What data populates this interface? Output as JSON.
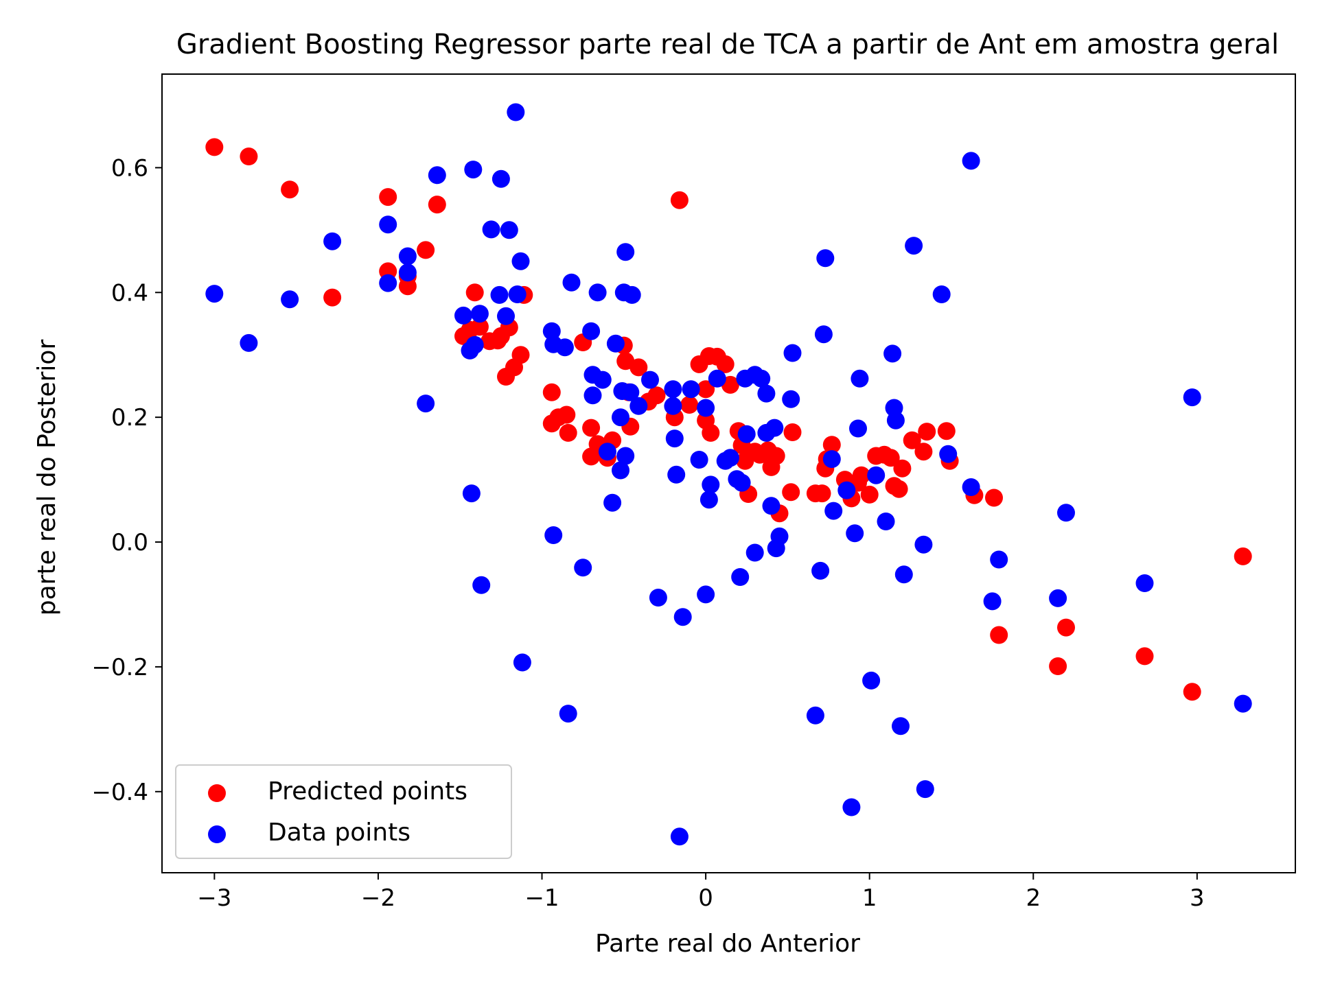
{
  "chart_data": {
    "type": "scatter",
    "title": "Gradient Boosting Regressor parte real de TCA a partir de Ant em amostra  geral",
    "xlabel": "Parte real do Anterior",
    "ylabel": "parte real do Posterior",
    "xlim": [
      -3.32,
      3.6
    ],
    "ylim": [
      -0.53,
      0.75
    ],
    "xticks": [
      -3,
      -2,
      -1,
      0,
      1,
      2,
      3
    ],
    "yticks": [
      -0.4,
      -0.2,
      0.0,
      0.2,
      0.4,
      0.6
    ],
    "xtick_labels": [
      "−3",
      "−2",
      "−1",
      "0",
      "1",
      "2",
      "3"
    ],
    "ytick_labels": [
      "−0.4",
      "−0.2",
      "0.0",
      "0.2",
      "0.4",
      "0.6"
    ],
    "grid": false,
    "legend_position": "lower-left",
    "series": [
      {
        "name": "Predicted points",
        "color": "#ff0000",
        "points": [
          [
            -3.0,
            0.633
          ],
          [
            -2.79,
            0.618
          ],
          [
            -2.54,
            0.565
          ],
          [
            -2.28,
            0.392
          ],
          [
            -1.94,
            0.553
          ],
          [
            -1.94,
            0.434
          ],
          [
            -1.82,
            0.41
          ],
          [
            -1.82,
            0.426
          ],
          [
            -1.71,
            0.468
          ],
          [
            -1.64,
            0.541
          ],
          [
            -1.48,
            0.33
          ],
          [
            -1.44,
            0.34
          ],
          [
            -1.41,
            0.4
          ],
          [
            -1.38,
            0.345
          ],
          [
            -1.32,
            0.322
          ],
          [
            -1.27,
            0.323
          ],
          [
            -1.25,
            0.33
          ],
          [
            -1.22,
            0.265
          ],
          [
            -1.2,
            0.344
          ],
          [
            -1.17,
            0.28
          ],
          [
            -1.13,
            0.3
          ],
          [
            -1.11,
            0.396
          ],
          [
            -0.94,
            0.24
          ],
          [
            -0.94,
            0.19
          ],
          [
            -0.9,
            0.2
          ],
          [
            -0.85,
            0.204
          ],
          [
            -0.84,
            0.175
          ],
          [
            -0.75,
            0.32
          ],
          [
            -0.7,
            0.183
          ],
          [
            -0.7,
            0.137
          ],
          [
            -0.66,
            0.157
          ],
          [
            -0.6,
            0.135
          ],
          [
            -0.57,
            0.163
          ],
          [
            -0.5,
            0.315
          ],
          [
            -0.49,
            0.29
          ],
          [
            -0.47,
            0.24
          ],
          [
            -0.46,
            0.185
          ],
          [
            -0.41,
            0.28
          ],
          [
            -0.35,
            0.225
          ],
          [
            -0.3,
            0.235
          ],
          [
            -0.19,
            0.2
          ],
          [
            -0.16,
            0.548
          ],
          [
            -0.1,
            0.22
          ],
          [
            -0.04,
            0.285
          ],
          [
            0.0,
            0.245
          ],
          [
            0.0,
            0.195
          ],
          [
            0.02,
            0.298
          ],
          [
            0.03,
            0.175
          ],
          [
            0.07,
            0.297
          ],
          [
            0.12,
            0.285
          ],
          [
            0.15,
            0.252
          ],
          [
            0.2,
            0.178
          ],
          [
            0.22,
            0.155
          ],
          [
            0.24,
            0.13
          ],
          [
            0.26,
            0.077
          ],
          [
            0.3,
            0.145
          ],
          [
            0.33,
            0.14
          ],
          [
            0.38,
            0.147
          ],
          [
            0.4,
            0.12
          ],
          [
            0.43,
            0.138
          ],
          [
            0.45,
            0.046
          ],
          [
            0.52,
            0.08
          ],
          [
            0.53,
            0.176
          ],
          [
            0.67,
            0.078
          ],
          [
            0.71,
            0.078
          ],
          [
            0.73,
            0.118
          ],
          [
            0.74,
            0.133
          ],
          [
            0.77,
            0.156
          ],
          [
            0.85,
            0.1
          ],
          [
            0.89,
            0.07
          ],
          [
            0.93,
            0.095
          ],
          [
            0.95,
            0.107
          ],
          [
            1.0,
            0.076
          ],
          [
            1.04,
            0.138
          ],
          [
            1.09,
            0.14
          ],
          [
            1.13,
            0.135
          ],
          [
            1.15,
            0.09
          ],
          [
            1.18,
            0.085
          ],
          [
            1.2,
            0.118
          ],
          [
            1.26,
            0.163
          ],
          [
            1.33,
            0.145
          ],
          [
            1.35,
            0.177
          ],
          [
            1.47,
            0.178
          ],
          [
            1.49,
            0.13
          ],
          [
            1.64,
            0.075
          ],
          [
            1.76,
            0.071
          ],
          [
            1.79,
            -0.149
          ],
          [
            2.15,
            -0.199
          ],
          [
            2.2,
            -0.137
          ],
          [
            2.68,
            -0.183
          ],
          [
            2.97,
            -0.24
          ],
          [
            3.28,
            -0.023
          ]
        ]
      },
      {
        "name": "Data points",
        "color": "#0000ff",
        "points": [
          [
            -3.0,
            0.398
          ],
          [
            -2.79,
            0.319
          ],
          [
            -2.54,
            0.389
          ],
          [
            -2.28,
            0.482
          ],
          [
            -1.94,
            0.509
          ],
          [
            -1.94,
            0.415
          ],
          [
            -1.82,
            0.458
          ],
          [
            -1.82,
            0.432
          ],
          [
            -1.71,
            0.222
          ],
          [
            -1.64,
            0.588
          ],
          [
            -1.48,
            0.363
          ],
          [
            -1.44,
            0.307
          ],
          [
            -1.43,
            0.078
          ],
          [
            -1.42,
            0.597
          ],
          [
            -1.41,
            0.316
          ],
          [
            -1.38,
            0.366
          ],
          [
            -1.37,
            -0.069
          ],
          [
            -1.31,
            0.501
          ],
          [
            -1.26,
            0.396
          ],
          [
            -1.25,
            0.582
          ],
          [
            -1.22,
            0.362
          ],
          [
            -1.2,
            0.5
          ],
          [
            -1.16,
            0.689
          ],
          [
            -1.15,
            0.397
          ],
          [
            -1.13,
            0.45
          ],
          [
            -1.12,
            -0.193
          ],
          [
            -0.94,
            0.338
          ],
          [
            -0.93,
            0.317
          ],
          [
            -0.93,
            0.011
          ],
          [
            -0.86,
            0.312
          ],
          [
            -0.84,
            -0.275
          ],
          [
            -0.82,
            0.416
          ],
          [
            -0.75,
            -0.041
          ],
          [
            -0.7,
            0.338
          ],
          [
            -0.69,
            0.268
          ],
          [
            -0.69,
            0.235
          ],
          [
            -0.66,
            0.4
          ],
          [
            -0.63,
            0.26
          ],
          [
            -0.6,
            0.145
          ],
          [
            -0.57,
            0.063
          ],
          [
            -0.55,
            0.318
          ],
          [
            -0.52,
            0.2
          ],
          [
            -0.52,
            0.115
          ],
          [
            -0.51,
            0.242
          ],
          [
            -0.5,
            0.4
          ],
          [
            -0.49,
            0.138
          ],
          [
            -0.49,
            0.465
          ],
          [
            -0.46,
            0.24
          ],
          [
            -0.45,
            0.396
          ],
          [
            -0.41,
            0.218
          ],
          [
            -0.34,
            0.26
          ],
          [
            -0.29,
            -0.089
          ],
          [
            -0.2,
            0.245
          ],
          [
            -0.2,
            0.218
          ],
          [
            -0.19,
            0.166
          ],
          [
            -0.18,
            0.108
          ],
          [
            -0.16,
            -0.472
          ],
          [
            -0.14,
            -0.12
          ],
          [
            -0.09,
            0.245
          ],
          [
            -0.04,
            0.132
          ],
          [
            0.0,
            0.215
          ],
          [
            0.0,
            -0.084
          ],
          [
            0.02,
            0.068
          ],
          [
            0.03,
            0.092
          ],
          [
            0.07,
            0.262
          ],
          [
            0.12,
            0.13
          ],
          [
            0.15,
            0.135
          ],
          [
            0.19,
            0.101
          ],
          [
            0.21,
            -0.056
          ],
          [
            0.22,
            0.095
          ],
          [
            0.24,
            0.262
          ],
          [
            0.25,
            0.173
          ],
          [
            0.3,
            0.268
          ],
          [
            0.3,
            -0.017
          ],
          [
            0.34,
            0.262
          ],
          [
            0.37,
            0.238
          ],
          [
            0.37,
            0.175
          ],
          [
            0.4,
            0.058
          ],
          [
            0.42,
            0.183
          ],
          [
            0.43,
            -0.01
          ],
          [
            0.45,
            0.009
          ],
          [
            0.52,
            0.229
          ],
          [
            0.53,
            0.303
          ],
          [
            0.67,
            -0.278
          ],
          [
            0.7,
            -0.046
          ],
          [
            0.72,
            0.333
          ],
          [
            0.73,
            0.455
          ],
          [
            0.77,
            0.133
          ],
          [
            0.78,
            0.05
          ],
          [
            0.86,
            0.083
          ],
          [
            0.89,
            -0.425
          ],
          [
            0.91,
            0.014
          ],
          [
            0.93,
            0.182
          ],
          [
            0.94,
            0.262
          ],
          [
            1.01,
            -0.222
          ],
          [
            1.04,
            0.107
          ],
          [
            1.1,
            0.033
          ],
          [
            1.14,
            0.302
          ],
          [
            1.15,
            0.215
          ],
          [
            1.16,
            0.195
          ],
          [
            1.19,
            -0.295
          ],
          [
            1.21,
            -0.052
          ],
          [
            1.27,
            0.475
          ],
          [
            1.33,
            -0.004
          ],
          [
            1.34,
            -0.396
          ],
          [
            1.44,
            0.397
          ],
          [
            1.48,
            0.141
          ],
          [
            1.62,
            0.088
          ],
          [
            1.62,
            0.611
          ],
          [
            1.75,
            -0.095
          ],
          [
            1.79,
            -0.028
          ],
          [
            2.15,
            -0.09
          ],
          [
            2.2,
            0.047
          ],
          [
            2.68,
            -0.066
          ],
          [
            2.97,
            0.232
          ],
          [
            3.28,
            -0.259
          ]
        ]
      }
    ]
  }
}
